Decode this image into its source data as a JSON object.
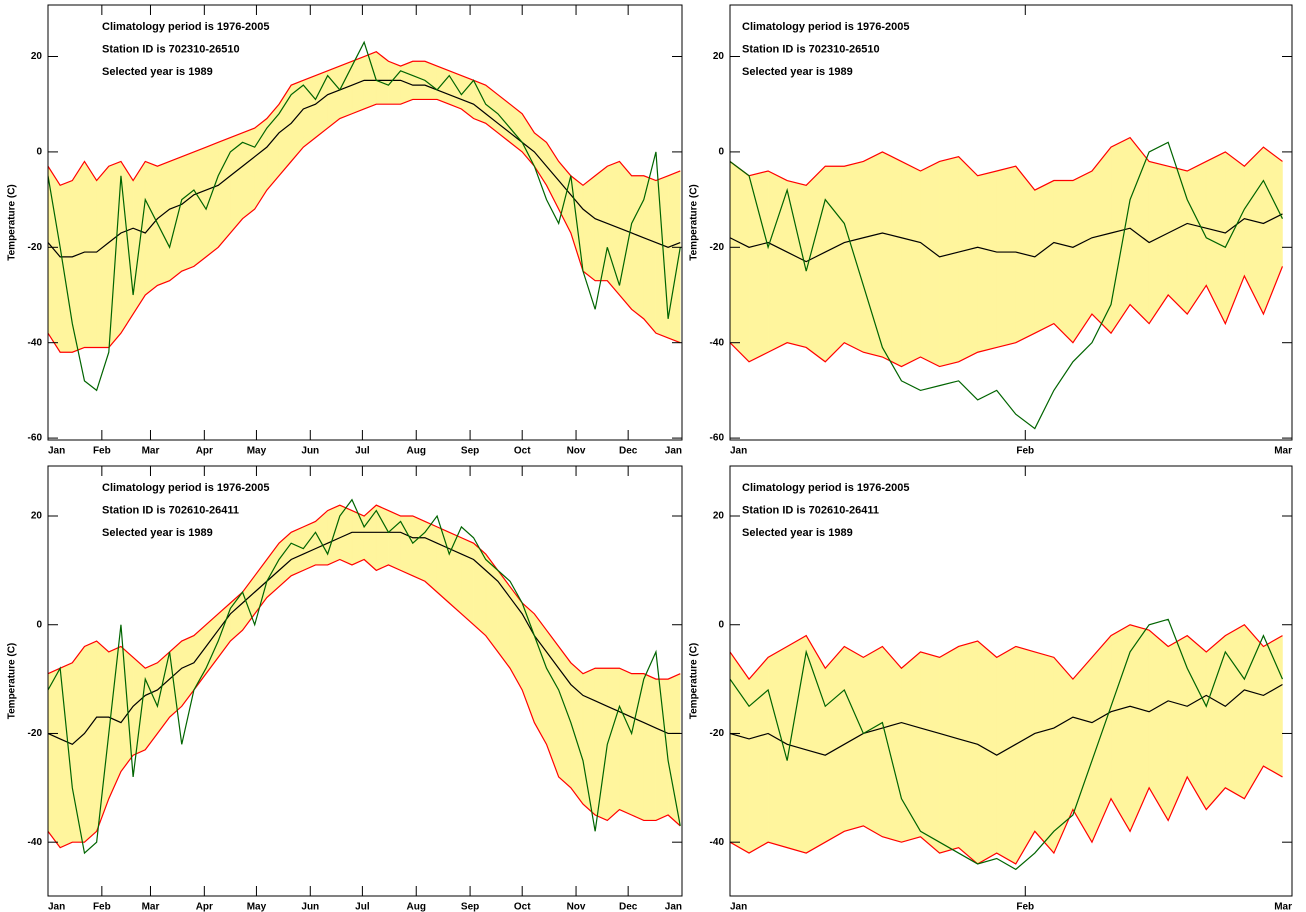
{
  "chart_data": [
    {
      "type": "line",
      "annotations": [
        "Climatology period is 1976-2005",
        "Station ID is 702310-26510",
        "Selected year is 1989"
      ],
      "ylabel": "Temperature (C)",
      "x": [
        0,
        7,
        14,
        21,
        28,
        35,
        42,
        49,
        56,
        63,
        70,
        77,
        84,
        91,
        98,
        105,
        112,
        119,
        126,
        133,
        140,
        147,
        154,
        161,
        168,
        175,
        182,
        189,
        196,
        203,
        210,
        217,
        224,
        231,
        238,
        245,
        252,
        259,
        266,
        273,
        280,
        287,
        294,
        301,
        308,
        315,
        322,
        329,
        336,
        343,
        350,
        357,
        364
      ],
      "xlim": [
        0,
        365
      ],
      "xticks": [
        {
          "value": 0,
          "label": "Jan"
        },
        {
          "value": 31,
          "label": "Feb"
        },
        {
          "value": 59,
          "label": "Mar"
        },
        {
          "value": 90,
          "label": "Apr"
        },
        {
          "value": 120,
          "label": "May"
        },
        {
          "value": 151,
          "label": "Jun"
        },
        {
          "value": 181,
          "label": "Jul"
        },
        {
          "value": 212,
          "label": "Aug"
        },
        {
          "value": 243,
          "label": "Sep"
        },
        {
          "value": 273,
          "label": "Oct"
        },
        {
          "value": 304,
          "label": "Nov"
        },
        {
          "value": 334,
          "label": "Dec"
        },
        {
          "value": 365,
          "label": "Jan"
        }
      ],
      "ylim": [
        -60.4,
        30.8
      ],
      "yticks": [
        20,
        0,
        -20,
        -40,
        -60
      ],
      "band": {
        "color": "#fff59d",
        "edge_color": "#ff0000",
        "upper": [
          -3,
          -7,
          -6,
          -2,
          -6,
          -3,
          -2,
          -6,
          -2,
          -3,
          -2,
          -1,
          0,
          1,
          2,
          3,
          4,
          5,
          7,
          10,
          14,
          15,
          16,
          17,
          18,
          19,
          20,
          21,
          19,
          18,
          19,
          19,
          18,
          17,
          16,
          15,
          14,
          12,
          10,
          8,
          4,
          2,
          -2,
          -5,
          -7,
          -5,
          -3,
          -2,
          -5,
          -5,
          -6,
          -5,
          -4
        ],
        "lower": [
          -38,
          -42,
          -42,
          -41,
          -41,
          -41,
          -38,
          -34,
          -30,
          -28,
          -27,
          -25,
          -24,
          -22,
          -20,
          -17,
          -14,
          -12,
          -8,
          -5,
          -2,
          1,
          3,
          5,
          7,
          8,
          9,
          10,
          10,
          10,
          11,
          11,
          11,
          10,
          9,
          7,
          6,
          4,
          2,
          0,
          -3,
          -7,
          -12,
          -17,
          -25,
          -27,
          -27,
          -30,
          -33,
          -35,
          -38,
          -39,
          -40
        ]
      },
      "series": [
        {
          "color": "#000000",
          "values": [
            -19,
            -22,
            -22,
            -21,
            -21,
            -19,
            -17,
            -16,
            -17,
            -14,
            -12,
            -11,
            -9,
            -8,
            -7,
            -5,
            -3,
            -1,
            1,
            4,
            6,
            9,
            10,
            12,
            13,
            14,
            15,
            15,
            15,
            15,
            14,
            14,
            13,
            12,
            11,
            10,
            8,
            6,
            4,
            2,
            0,
            -3,
            -6,
            -9,
            -12,
            -14,
            -15,
            -16,
            -17,
            -18,
            -19,
            -20,
            -19
          ]
        },
        {
          "color": "#006400",
          "values": [
            -5,
            -20,
            -36,
            -48,
            -50,
            -42,
            -5,
            -30,
            -10,
            -15,
            -20,
            -10,
            -8,
            -12,
            -5,
            0,
            2,
            1,
            5,
            8,
            12,
            14,
            11,
            16,
            13,
            18,
            23,
            15,
            14,
            17,
            16,
            15,
            13,
            16,
            12,
            15,
            10,
            8,
            5,
            2,
            -3,
            -10,
            -15,
            -5,
            -25,
            -33,
            -20,
            -28,
            -15,
            -10,
            0,
            -35,
            -20
          ]
        }
      ]
    },
    {
      "type": "line",
      "annotations": [
        "Climatology period is 1976-2005",
        "Station ID is 702310-26510",
        "Selected year is 1989"
      ],
      "ylabel": "Temperature (C)",
      "x": [
        0,
        2,
        4,
        6,
        8,
        10,
        12,
        14,
        16,
        18,
        20,
        22,
        24,
        26,
        28,
        30,
        32,
        34,
        36,
        38,
        40,
        42,
        44,
        46,
        48,
        50,
        52,
        54,
        56,
        58
      ],
      "xlim": [
        0,
        59
      ],
      "xticks": [
        {
          "value": 0,
          "label": "Jan"
        },
        {
          "value": 31,
          "label": "Feb"
        },
        {
          "value": 59,
          "label": "Mar"
        }
      ],
      "ylim": [
        -60.4,
        30.8
      ],
      "yticks": [
        20,
        0,
        -20,
        -40,
        -60
      ],
      "band": {
        "color": "#fff59d",
        "edge_color": "#ff0000",
        "upper": [
          -2,
          -5,
          -4,
          -6,
          -7,
          -3,
          -3,
          -2,
          0,
          -2,
          -4,
          -2,
          -1,
          -5,
          -4,
          -3,
          -8,
          -6,
          -6,
          -4,
          1,
          3,
          -2,
          -3,
          -4,
          -2,
          0,
          -3,
          1,
          -2
        ],
        "lower": [
          -40,
          -44,
          -42,
          -40,
          -41,
          -44,
          -40,
          -42,
          -43,
          -45,
          -43,
          -45,
          -44,
          -42,
          -41,
          -40,
          -38,
          -36,
          -40,
          -34,
          -38,
          -32,
          -36,
          -30,
          -34,
          -28,
          -36,
          -26,
          -34,
          -24
        ]
      },
      "series": [
        {
          "color": "#000000",
          "values": [
            -18,
            -20,
            -19,
            -21,
            -23,
            -21,
            -19,
            -18,
            -17,
            -18,
            -19,
            -22,
            -21,
            -20,
            -21,
            -21,
            -22,
            -19,
            -20,
            -18,
            -17,
            -16,
            -19,
            -17,
            -15,
            -16,
            -17,
            -14,
            -15,
            -13
          ]
        },
        {
          "color": "#006400",
          "values": [
            -2,
            -5,
            -20,
            -8,
            -25,
            -10,
            -15,
            -28,
            -41,
            -48,
            -50,
            -49,
            -48,
            -52,
            -50,
            -55,
            -58,
            -50,
            -44,
            -40,
            -32,
            -10,
            0,
            2,
            -10,
            -18,
            -20,
            -12,
            -6,
            -14
          ]
        }
      ]
    },
    {
      "type": "line",
      "annotations": [
        "Climatology period is 1976-2005",
        "Station ID is 702610-26411",
        "Selected year is 1989"
      ],
      "ylabel": "Temperature (C)",
      "x": [
        0,
        7,
        14,
        21,
        28,
        35,
        42,
        49,
        56,
        63,
        70,
        77,
        84,
        91,
        98,
        105,
        112,
        119,
        126,
        133,
        140,
        147,
        154,
        161,
        168,
        175,
        182,
        189,
        196,
        203,
        210,
        217,
        224,
        231,
        238,
        245,
        252,
        259,
        266,
        273,
        280,
        287,
        294,
        301,
        308,
        315,
        322,
        329,
        336,
        343,
        350,
        357,
        364
      ],
      "xlim": [
        0,
        365
      ],
      "xticks": [
        {
          "value": 0,
          "label": "Jan"
        },
        {
          "value": 31,
          "label": "Feb"
        },
        {
          "value": 59,
          "label": "Mar"
        },
        {
          "value": 90,
          "label": "Apr"
        },
        {
          "value": 120,
          "label": "May"
        },
        {
          "value": 151,
          "label": "Jun"
        },
        {
          "value": 181,
          "label": "Jul"
        },
        {
          "value": 212,
          "label": "Aug"
        },
        {
          "value": 243,
          "label": "Sep"
        },
        {
          "value": 273,
          "label": "Oct"
        },
        {
          "value": 304,
          "label": "Nov"
        },
        {
          "value": 334,
          "label": "Dec"
        },
        {
          "value": 365,
          "label": "Jan"
        }
      ],
      "ylim": [
        -49.9,
        29.2
      ],
      "yticks": [
        20,
        0,
        -20,
        -40
      ],
      "band": {
        "color": "#fff59d",
        "edge_color": "#ff0000",
        "upper": [
          -9,
          -8,
          -7,
          -4,
          -3,
          -5,
          -4,
          -6,
          -8,
          -7,
          -5,
          -3,
          -2,
          0,
          2,
          4,
          6,
          9,
          12,
          15,
          17,
          18,
          19,
          21,
          22,
          21,
          20,
          22,
          21,
          20,
          20,
          19,
          18,
          17,
          16,
          15,
          13,
          10,
          7,
          4,
          2,
          -1,
          -4,
          -7,
          -9,
          -8,
          -8,
          -8,
          -9,
          -9,
          -10,
          -10,
          -9
        ],
        "lower": [
          -38,
          -41,
          -40,
          -40,
          -38,
          -32,
          -27,
          -24,
          -23,
          -20,
          -17,
          -15,
          -12,
          -9,
          -6,
          -3,
          -1,
          2,
          5,
          7,
          9,
          10,
          11,
          11,
          12,
          11,
          12,
          10,
          11,
          10,
          9,
          8,
          6,
          4,
          2,
          0,
          -2,
          -5,
          -8,
          -12,
          -18,
          -22,
          -28,
          -30,
          -33,
          -35,
          -36,
          -34,
          -35,
          -36,
          -36,
          -35,
          -37
        ]
      },
      "series": [
        {
          "color": "#000000",
          "values": [
            -20,
            -21,
            -22,
            -20,
            -17,
            -17,
            -18,
            -15,
            -13,
            -12,
            -10,
            -8,
            -7,
            -4,
            -1,
            2,
            4,
            6,
            8,
            10,
            12,
            13,
            14,
            15,
            16,
            17,
            17,
            17,
            17,
            17,
            16,
            16,
            15,
            14,
            13,
            12,
            10,
            8,
            5,
            2,
            -2,
            -5,
            -8,
            -11,
            -13,
            -14,
            -15,
            -16,
            -17,
            -18,
            -19,
            -20,
            -20
          ]
        },
        {
          "color": "#006400",
          "values": [
            -12,
            -8,
            -30,
            -42,
            -40,
            -20,
            0,
            -28,
            -10,
            -15,
            -5,
            -22,
            -12,
            -8,
            -3,
            3,
            6,
            0,
            8,
            12,
            15,
            14,
            17,
            13,
            20,
            23,
            18,
            21,
            17,
            19,
            15,
            17,
            20,
            13,
            18,
            16,
            12,
            10,
            8,
            4,
            -2,
            -8,
            -12,
            -18,
            -25,
            -38,
            -22,
            -15,
            -20,
            -10,
            -5,
            -25,
            -37
          ]
        }
      ]
    },
    {
      "type": "line",
      "annotations": [
        "Climatology period is 1976-2005",
        "Station ID is 702610-26411",
        "Selected year is 1989"
      ],
      "ylabel": "Temperature (C)",
      "x": [
        0,
        2,
        4,
        6,
        8,
        10,
        12,
        14,
        16,
        18,
        20,
        22,
        24,
        26,
        28,
        30,
        32,
        34,
        36,
        38,
        40,
        42,
        44,
        46,
        48,
        50,
        52,
        54,
        56,
        58
      ],
      "xlim": [
        0,
        59
      ],
      "xticks": [
        {
          "value": 0,
          "label": "Jan"
        },
        {
          "value": 31,
          "label": "Feb"
        },
        {
          "value": 59,
          "label": "Mar"
        }
      ],
      "ylim": [
        -49.9,
        29.2
      ],
      "yticks": [
        20,
        0,
        -20,
        -40
      ],
      "band": {
        "color": "#fff59d",
        "edge_color": "#ff0000",
        "upper": [
          -5,
          -10,
          -6,
          -4,
          -2,
          -8,
          -4,
          -6,
          -4,
          -8,
          -5,
          -6,
          -4,
          -3,
          -6,
          -4,
          -5,
          -6,
          -10,
          -6,
          -2,
          0,
          -1,
          -4,
          -2,
          -5,
          -2,
          0,
          -4,
          -2
        ],
        "lower": [
          -40,
          -42,
          -40,
          -41,
          -42,
          -40,
          -38,
          -37,
          -39,
          -40,
          -39,
          -42,
          -41,
          -44,
          -42,
          -44,
          -38,
          -42,
          -34,
          -40,
          -32,
          -38,
          -30,
          -36,
          -28,
          -34,
          -30,
          -32,
          -26,
          -28
        ]
      },
      "series": [
        {
          "color": "#000000",
          "values": [
            -20,
            -21,
            -20,
            -22,
            -23,
            -24,
            -22,
            -20,
            -19,
            -18,
            -19,
            -20,
            -21,
            -22,
            -24,
            -22,
            -20,
            -19,
            -17,
            -18,
            -16,
            -15,
            -16,
            -14,
            -15,
            -13,
            -15,
            -12,
            -13,
            -11
          ]
        },
        {
          "color": "#006400",
          "values": [
            -10,
            -15,
            -12,
            -25,
            -5,
            -15,
            -12,
            -20,
            -18,
            -32,
            -38,
            -40,
            -42,
            -44,
            -43,
            -45,
            -42,
            -38,
            -35,
            -25,
            -15,
            -5,
            0,
            1,
            -8,
            -15,
            -5,
            -10,
            -2,
            -10
          ]
        }
      ]
    }
  ]
}
